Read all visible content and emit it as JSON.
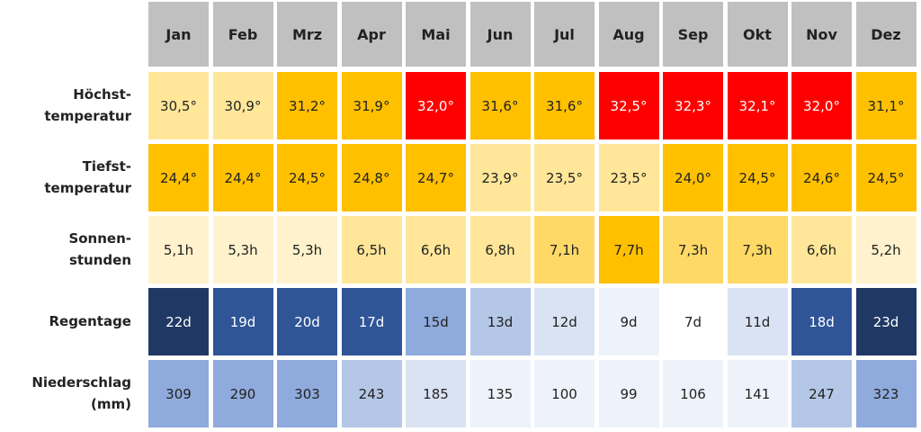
{
  "table": {
    "header": [
      "Jan",
      "Feb",
      "Mrz",
      "Apr",
      "Mai",
      "Jun",
      "Jul",
      "Aug",
      "Sep",
      "Okt",
      "Nov",
      "Dez"
    ],
    "rows": [
      {
        "label": "Höchst-\ntemperatur",
        "cells": [
          "30,5°",
          "30,9°",
          "31,2°",
          "31,9°",
          "32,0°",
          "31,6°",
          "31,6°",
          "32,5°",
          "32,3°",
          "32,1°",
          "32,0°",
          "31,1°"
        ],
        "colors": [
          "#ffe699",
          "#ffe699",
          "#ffc000",
          "#ffc000",
          "#ff0000",
          "#ffc000",
          "#ffc000",
          "#ff0000",
          "#ff0000",
          "#ff0000",
          "#ff0000",
          "#ffc000"
        ]
      },
      {
        "label": "Tiefst-\ntemperatur",
        "cells": [
          "24,4°",
          "24,4°",
          "24,5°",
          "24,8°",
          "24,7°",
          "23,9°",
          "23,5°",
          "23,5°",
          "24,0°",
          "24,5°",
          "24,6°",
          "24,5°"
        ],
        "colors": [
          "#ffc000",
          "#ffc000",
          "#ffc000",
          "#ffc000",
          "#ffc000",
          "#ffe699",
          "#ffe699",
          "#ffe699",
          "#ffc000",
          "#ffc000",
          "#ffc000",
          "#ffc000"
        ]
      },
      {
        "label": "Sonnen-\nstunden",
        "cells": [
          "5,1h",
          "5,3h",
          "5,3h",
          "6,5h",
          "6,6h",
          "6,8h",
          "7,1h",
          "7,7h",
          "7,3h",
          "7,3h",
          "6,6h",
          "5,2h"
        ],
        "colors": [
          "#fff2cc",
          "#fff2cc",
          "#fff2cc",
          "#ffe699",
          "#ffe699",
          "#ffe699",
          "#ffd966",
          "#ffc000",
          "#ffd966",
          "#ffd966",
          "#ffe699",
          "#fff2cc"
        ]
      },
      {
        "label": "Regentage",
        "cells": [
          "22d",
          "19d",
          "20d",
          "17d",
          "15d",
          "13d",
          "12d",
          "9d",
          "7d",
          "11d",
          "18d",
          "23d"
        ],
        "colors": [
          "#203864",
          "#2f5597",
          "#2f5597",
          "#2f5597",
          "#8faadc",
          "#b4c7e7",
          "#dae3f3",
          "#eef2fa",
          "#ffffff",
          "#dae3f3",
          "#2f5597",
          "#1f3864"
        ]
      },
      {
        "label": "Niederschlag\n(mm)",
        "cells": [
          "309",
          "290",
          "303",
          "243",
          "185",
          "135",
          "100",
          "99",
          "106",
          "141",
          "247",
          "323"
        ],
        "colors": [
          "#8faadc",
          "#8faadc",
          "#8faadc",
          "#b4c7e7",
          "#dae3f3",
          "#eef2fa",
          "#eef2fa",
          "#eef2fa",
          "#eef2fa",
          "#eef2fa",
          "#b4c7e7",
          "#8faadc"
        ]
      }
    ]
  }
}
